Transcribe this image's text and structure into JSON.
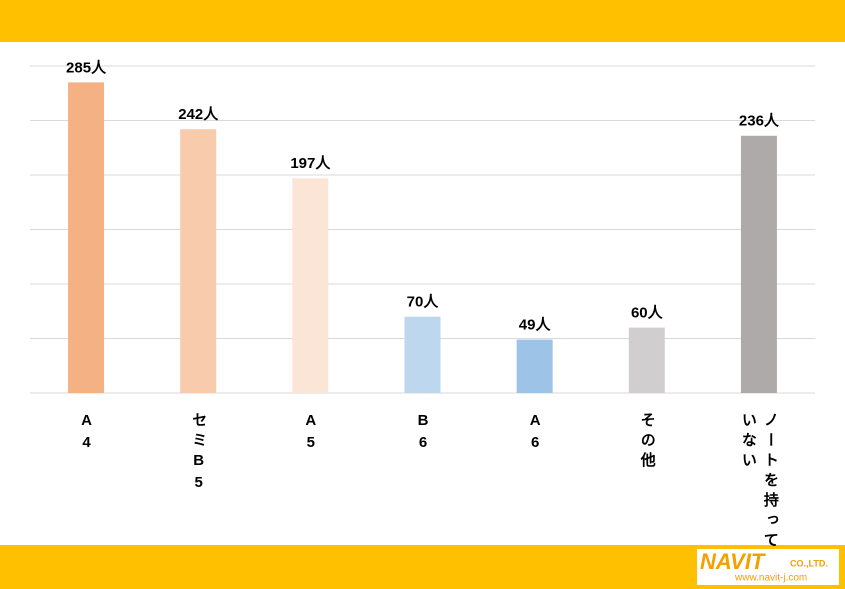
{
  "chart_data": {
    "type": "bar",
    "categories": [
      "A4",
      "セミB5",
      "A5",
      "B6",
      "A6",
      "その他",
      "ノートを持っていない"
    ],
    "values": [
      285,
      242,
      197,
      70,
      49,
      60,
      236
    ],
    "value_labels": [
      "285人",
      "242人",
      "197人",
      "70人",
      "49人",
      "60人",
      "236人"
    ],
    "colors": [
      "#F4B183",
      "#F8CBAD",
      "#FBE5D6",
      "#BDD7EE",
      "#9DC3E6",
      "#D0CECE",
      "#AEAAAA"
    ],
    "ylim": [
      0,
      300
    ],
    "yticks": [
      0,
      50,
      100,
      150,
      200,
      250,
      300
    ],
    "grid": true
  },
  "logo": {
    "name": "NAVIT",
    "company": "CO.,LTD.",
    "url": "www.navit-j.com"
  }
}
